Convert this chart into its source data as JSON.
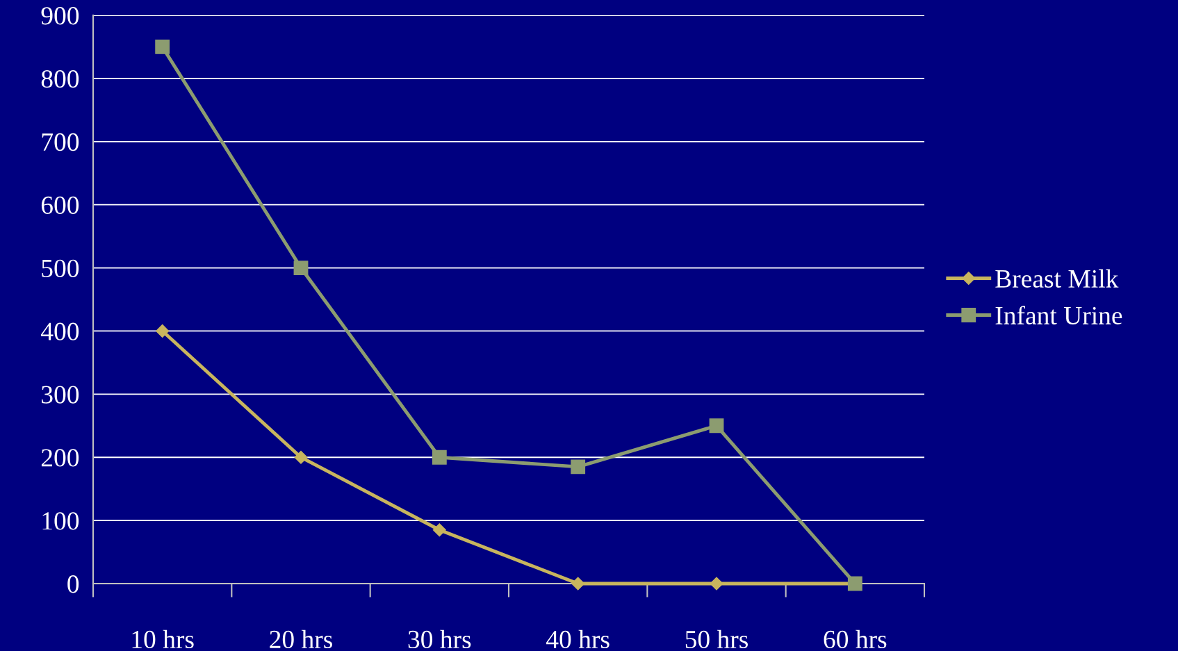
{
  "chart_data": {
    "type": "line",
    "categories": [
      "10 hrs",
      "20 hrs",
      "30 hrs",
      "40 hrs",
      "50 hrs",
      "60 hrs"
    ],
    "series": [
      {
        "name": "Breast Milk",
        "color": "#c8b55e",
        "marker": "diamond",
        "values": [
          400,
          200,
          85,
          0,
          0,
          0
        ]
      },
      {
        "name": "Infant Urine",
        "color": "#8c9c70",
        "marker": "square",
        "values": [
          850,
          500,
          200,
          185,
          250,
          0
        ]
      }
    ],
    "ylim": [
      0,
      900
    ],
    "yticks": [
      0,
      100,
      200,
      300,
      400,
      500,
      600,
      700,
      800,
      900
    ],
    "grid": "y",
    "legend": "right",
    "line_style": "solid"
  }
}
